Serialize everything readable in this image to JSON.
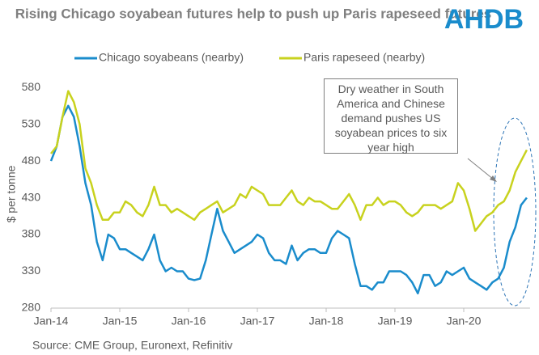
{
  "chart_data": {
    "type": "line",
    "title": "Rising Chicago soyabean futures help to push up Paris rapeseed futures",
    "logo": "AHDB",
    "y_label": "$ per tonne",
    "source": "Source: CME Group, Euronext, Refinitiv",
    "annotation": "Dry weather in South America and Chinese demand pushes US soyabean prices to six year high",
    "x": [
      "2014-01",
      "2014-02",
      "2014-03",
      "2014-04",
      "2014-05",
      "2014-06",
      "2014-07",
      "2014-08",
      "2014-09",
      "2014-10",
      "2014-11",
      "2014-12",
      "2015-01",
      "2015-02",
      "2015-03",
      "2015-04",
      "2015-05",
      "2015-06",
      "2015-07",
      "2015-08",
      "2015-09",
      "2015-10",
      "2015-11",
      "2015-12",
      "2016-01",
      "2016-02",
      "2016-03",
      "2016-04",
      "2016-05",
      "2016-06",
      "2016-07",
      "2016-08",
      "2016-09",
      "2016-10",
      "2016-11",
      "2016-12",
      "2017-01",
      "2017-02",
      "2017-03",
      "2017-04",
      "2017-05",
      "2017-06",
      "2017-07",
      "2017-08",
      "2017-09",
      "2017-10",
      "2017-11",
      "2017-12",
      "2018-01",
      "2018-02",
      "2018-03",
      "2018-04",
      "2018-05",
      "2018-06",
      "2018-07",
      "2018-08",
      "2018-09",
      "2018-10",
      "2018-11",
      "2018-12",
      "2019-01",
      "2019-02",
      "2019-03",
      "2019-04",
      "2019-05",
      "2019-06",
      "2019-07",
      "2019-08",
      "2019-09",
      "2019-10",
      "2019-11",
      "2019-12",
      "2020-01",
      "2020-02",
      "2020-03",
      "2020-04",
      "2020-05",
      "2020-06",
      "2020-07",
      "2020-08",
      "2020-09",
      "2020-10",
      "2020-11",
      "2020-12"
    ],
    "series": [
      {
        "name": "Chicago soyabeans (nearby)",
        "color": "#1a8ccc",
        "values": [
          480,
          500,
          540,
          555,
          540,
          500,
          450,
          420,
          370,
          345,
          380,
          375,
          360,
          360,
          355,
          350,
          345,
          360,
          380,
          345,
          330,
          335,
          330,
          330,
          320,
          318,
          320,
          345,
          380,
          415,
          385,
          370,
          355,
          360,
          365,
          370,
          380,
          375,
          355,
          345,
          345,
          340,
          365,
          345,
          355,
          360,
          360,
          355,
          355,
          375,
          385,
          380,
          375,
          340,
          310,
          310,
          305,
          315,
          315,
          330,
          330,
          330,
          325,
          315,
          300,
          325,
          325,
          310,
          315,
          330,
          325,
          330,
          335,
          320,
          315,
          310,
          305,
          315,
          320,
          335,
          370,
          390,
          420,
          430
        ]
      },
      {
        "name": "Paris rapeseed (nearby)",
        "color": "#c8d21e",
        "values": [
          490,
          500,
          540,
          575,
          560,
          530,
          470,
          450,
          420,
          400,
          400,
          410,
          410,
          425,
          420,
          410,
          405,
          420,
          445,
          420,
          420,
          410,
          415,
          410,
          405,
          400,
          410,
          415,
          420,
          425,
          410,
          415,
          420,
          435,
          430,
          445,
          440,
          435,
          420,
          420,
          420,
          430,
          440,
          425,
          420,
          430,
          425,
          425,
          420,
          415,
          415,
          425,
          435,
          420,
          400,
          420,
          420,
          430,
          420,
          425,
          425,
          420,
          410,
          405,
          410,
          420,
          420,
          420,
          415,
          420,
          425,
          450,
          440,
          415,
          385,
          395,
          405,
          410,
          420,
          425,
          440,
          465,
          480,
          495
        ]
      }
    ],
    "ylim": [
      280,
      590
    ],
    "yticks": [
      280,
      330,
      380,
      430,
      480,
      530,
      580
    ],
    "xticks": [
      {
        "value": "2014-01",
        "label": "Jan-14"
      },
      {
        "value": "2015-01",
        "label": "Jan-15"
      },
      {
        "value": "2016-01",
        "label": "Jan-16"
      },
      {
        "value": "2017-01",
        "label": "Jan-17"
      },
      {
        "value": "2018-01",
        "label": "Jan-18"
      },
      {
        "value": "2019-01",
        "label": "Jan-19"
      },
      {
        "value": "2020-01",
        "label": "Jan-20"
      }
    ],
    "grid": false
  }
}
